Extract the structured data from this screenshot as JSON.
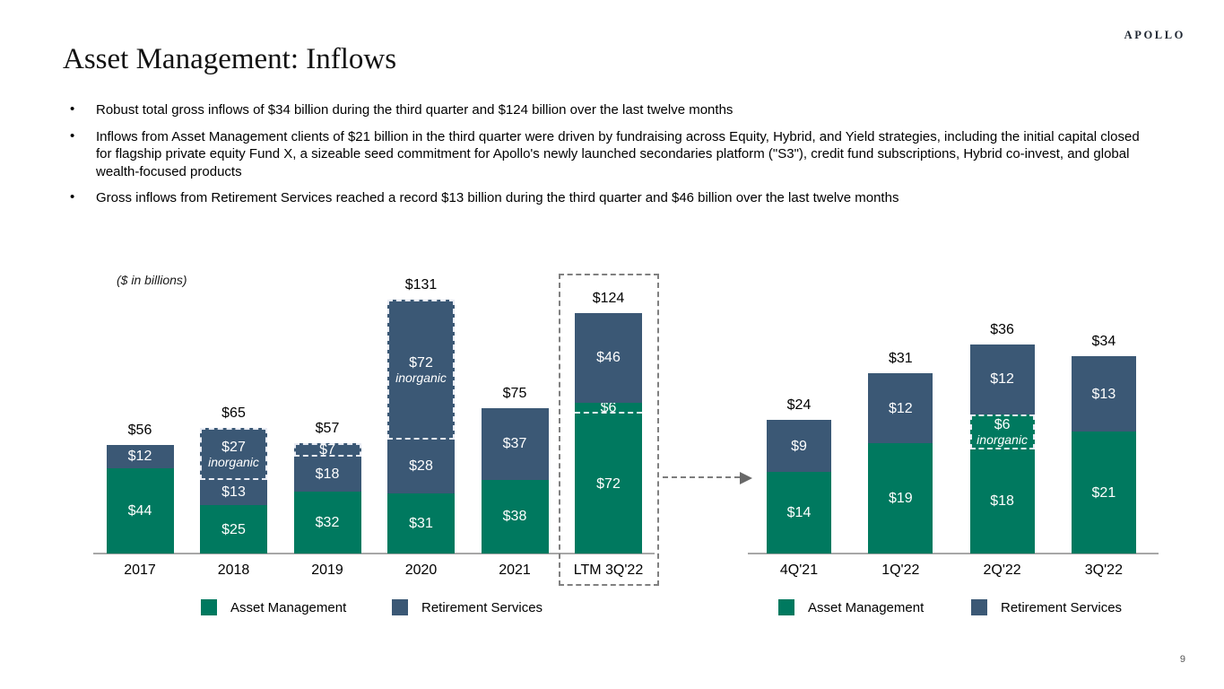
{
  "slide": {
    "logo": "APOLLO",
    "title": "Asset Management: Inflows",
    "page_number": "9",
    "bullets": [
      "Robust total gross inflows of $34 billion during the third quarter and $124 billion over the last twelve months",
      "Inflows from Asset Management clients of $21 billion in the third quarter were driven by fundraising across Equity, Hybrid, and Yield strategies, including the initial capital closed for flagship private equity Fund X, a sizeable seed commitment for Apollo's newly launched secondaries platform (\"S3\"), credit fund subscriptions, Hybrid co-invest, and global wealth-focused products",
      "Gross inflows from Retirement Services reached a record $13 billion during the third quarter and $46 billion over the last twelve months"
    ]
  },
  "colors": {
    "asset_management": "#00795f",
    "retirement_services": "#3b5875",
    "inorganic_dash": "#e8ebf3",
    "axis": "#a7a7a7",
    "highlight_dash": "#808080"
  },
  "chart_data": [
    {
      "type": "bar",
      "stacked": true,
      "units_label": "($ in billions)",
      "legend": [
        "Asset Management",
        "Retirement Services"
      ],
      "legend_position": "bottom",
      "categories": [
        "2017",
        "2018",
        "2019",
        "2020",
        "2021",
        "LTM 3Q'22"
      ],
      "ylim": [
        0,
        140
      ],
      "bars": [
        {
          "category": "2017",
          "total": 56,
          "total_label": "$56",
          "segments": [
            {
              "series": "Asset Management",
              "value": 44,
              "label": "$44"
            },
            {
              "series": "Retirement Services",
              "value": 12,
              "label": "$12"
            }
          ]
        },
        {
          "category": "2018",
          "total": 65,
          "total_label": "$65",
          "segments": [
            {
              "series": "Asset Management",
              "value": 25,
              "label": "$25"
            },
            {
              "series": "Retirement Services",
              "value": 13,
              "label": "$13"
            },
            {
              "series": "Retirement Services",
              "value": 27,
              "label": "$27",
              "note": "inorganic",
              "dashed": "box"
            }
          ]
        },
        {
          "category": "2019",
          "total": 57,
          "total_label": "$57",
          "segments": [
            {
              "series": "Asset Management",
              "value": 32,
              "label": "$32"
            },
            {
              "series": "Retirement Services",
              "value": 18,
              "label": "$18"
            },
            {
              "series": "Retirement Services",
              "value": 7,
              "label": "$7",
              "dashed": "box"
            }
          ]
        },
        {
          "category": "2020",
          "total": 131,
          "total_label": "$131",
          "segments": [
            {
              "series": "Asset Management",
              "value": 31,
              "label": "$31"
            },
            {
              "series": "Retirement Services",
              "value": 28,
              "label": "$28"
            },
            {
              "series": "Retirement Services",
              "value": 72,
              "label": "$72",
              "note": "inorganic",
              "dashed": "box"
            }
          ]
        },
        {
          "category": "2021",
          "total": 75,
          "total_label": "$75",
          "segments": [
            {
              "series": "Asset Management",
              "value": 38,
              "label": "$38"
            },
            {
              "series": "Retirement Services",
              "value": 37,
              "label": "$37"
            }
          ]
        },
        {
          "category": "LTM 3Q'22",
          "total": 124,
          "total_label": "$124",
          "highlight": true,
          "segments": [
            {
              "series": "Asset Management",
              "value": 72,
              "label": "$72"
            },
            {
              "series": "Asset Management",
              "value": 6,
              "label": "$6",
              "dashed": "bottom"
            },
            {
              "series": "Retirement Services",
              "value": 46,
              "label": "$46"
            }
          ]
        }
      ]
    },
    {
      "type": "bar",
      "stacked": true,
      "legend": [
        "Asset Management",
        "Retirement Services"
      ],
      "legend_position": "bottom",
      "categories": [
        "4Q'21",
        "1Q'22",
        "2Q'22",
        "3Q'22"
      ],
      "ylim": [
        0,
        40
      ],
      "bars": [
        {
          "category": "4Q'21",
          "total": 24,
          "total_label": "$24",
          "segments": [
            {
              "series": "Asset Management",
              "value": 14,
              "label": "$14"
            },
            {
              "series": "Retirement Services",
              "value": 9,
              "label": "$9"
            }
          ]
        },
        {
          "category": "1Q'22",
          "total": 31,
          "total_label": "$31",
          "segments": [
            {
              "series": "Asset Management",
              "value": 19,
              "label": "$19"
            },
            {
              "series": "Retirement Services",
              "value": 12,
              "label": "$12"
            }
          ]
        },
        {
          "category": "2Q'22",
          "total": 36,
          "total_label": "$36",
          "segments": [
            {
              "series": "Asset Management",
              "value": 18,
              "label": "$18"
            },
            {
              "series": "Asset Management",
              "value": 6,
              "label": "$6",
              "note": "inorganic",
              "dashed": "box"
            },
            {
              "series": "Retirement Services",
              "value": 12,
              "label": "$12"
            }
          ]
        },
        {
          "category": "3Q'22",
          "total": 34,
          "total_label": "$34",
          "segments": [
            {
              "series": "Asset Management",
              "value": 21,
              "label": "$21"
            },
            {
              "series": "Retirement Services",
              "value": 13,
              "label": "$13"
            }
          ]
        }
      ]
    }
  ]
}
